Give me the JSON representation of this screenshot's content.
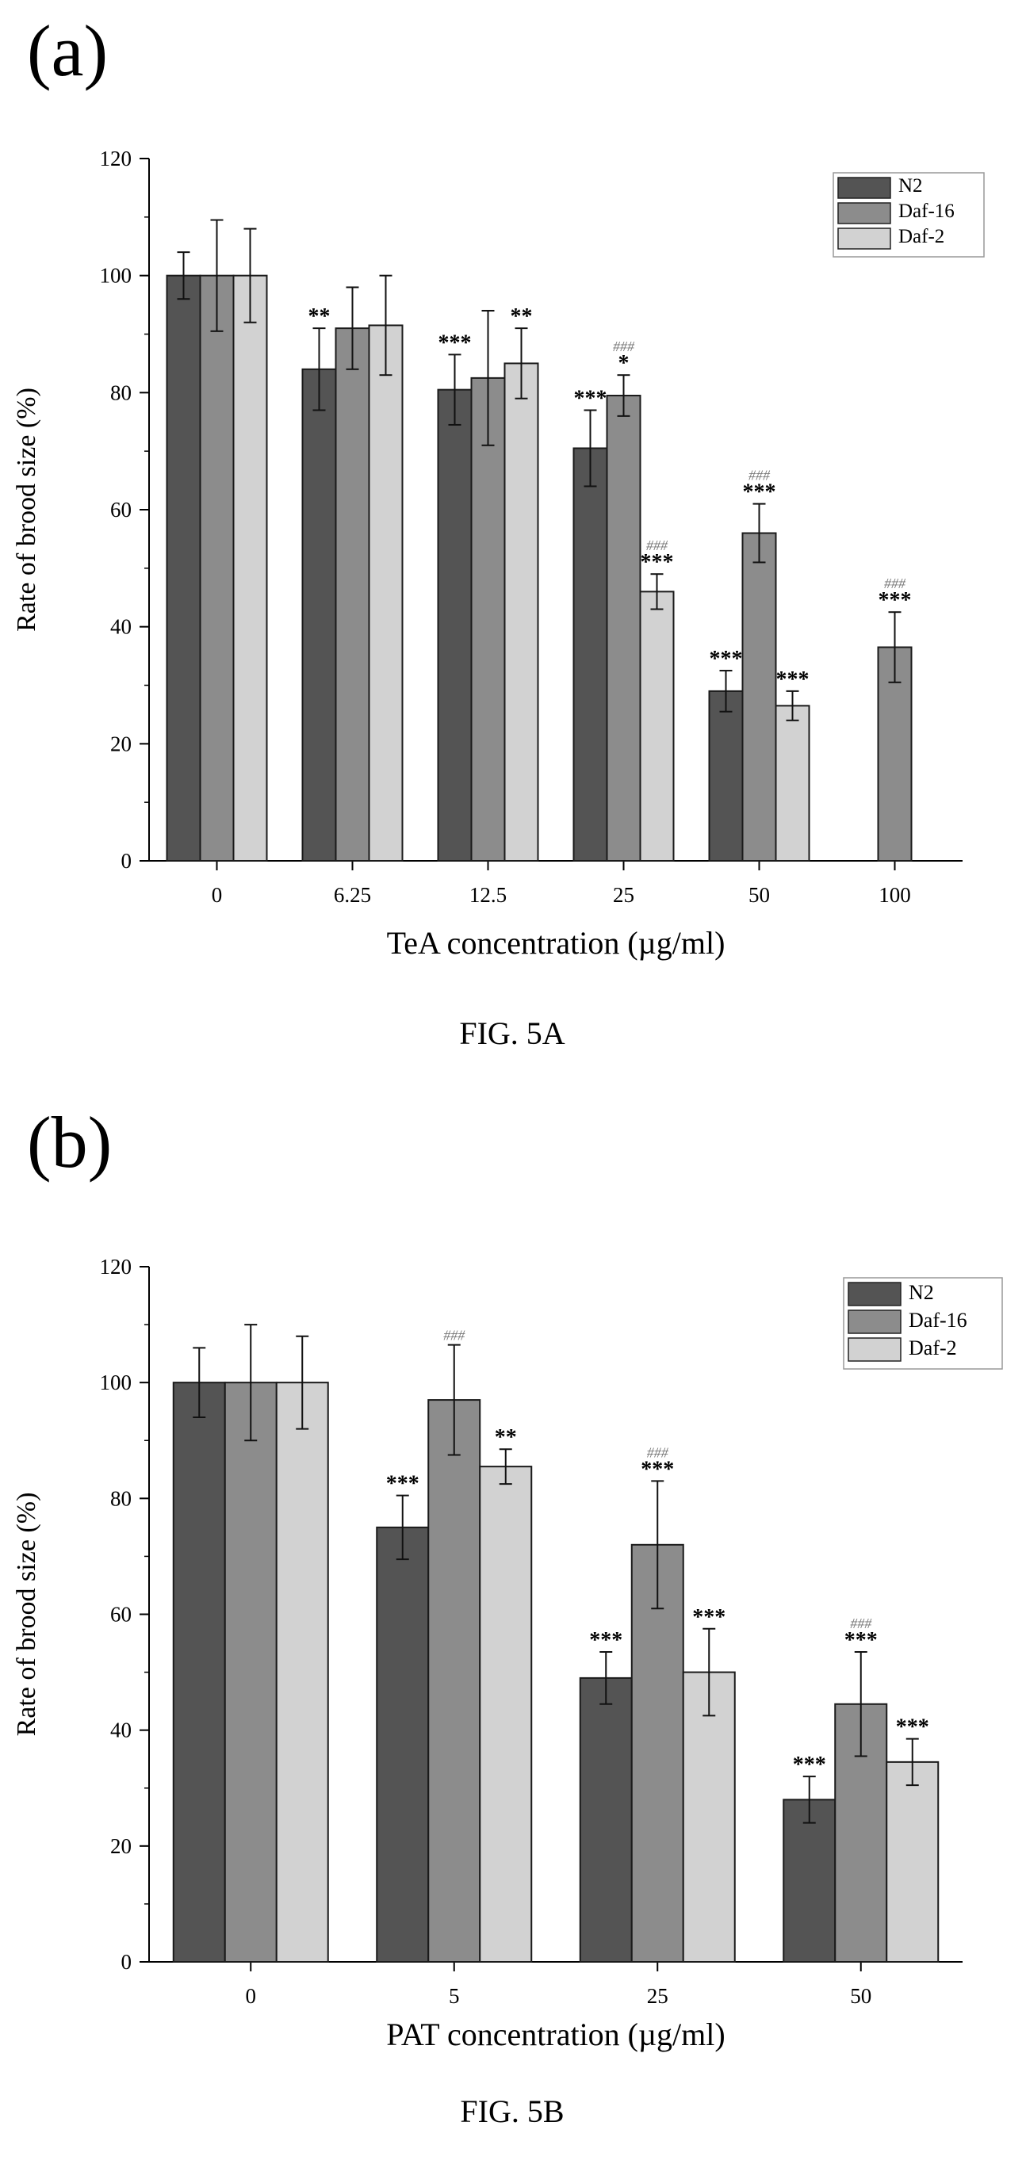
{
  "figure_a": {
    "panel_label": "(a)",
    "caption": "FIG. 5A",
    "legend": [
      "N2",
      "Daf-16",
      "Daf-2"
    ]
  },
  "figure_b": {
    "panel_label": "(b)",
    "caption": "FIG. 5B",
    "legend": [
      "N2",
      "Daf-16",
      "Daf-2"
    ]
  },
  "colors": {
    "N2": "#545454",
    "Daf-16": "#8c8c8c",
    "Daf-2": "#d2d2d2"
  },
  "chart_data": [
    {
      "type": "bar",
      "title": "",
      "xlabel": "TeA concentration (µg/ml)",
      "ylabel": "Rate of brood size (%)",
      "ylim": [
        0,
        120
      ],
      "yticks": [
        0,
        20,
        40,
        60,
        80,
        100,
        120
      ],
      "categories": [
        "0",
        "6.25",
        "12.5",
        "25",
        "50",
        "100"
      ],
      "legend_position": "top-right",
      "series": [
        {
          "name": "N2",
          "values": [
            100,
            84,
            80.5,
            70.5,
            29,
            null
          ],
          "errors": [
            4,
            7,
            6,
            6.5,
            3.5,
            null
          ],
          "annotations": [
            [
              "",
              ""
            ],
            [
              "",
              "**"
            ],
            [
              "",
              "***"
            ],
            [
              "",
              "***"
            ],
            [
              "",
              "***"
            ],
            [
              "",
              ""
            ]
          ]
        },
        {
          "name": "Daf-16",
          "values": [
            100,
            91,
            82.5,
            79.5,
            56,
            36.5
          ],
          "errors": [
            9.5,
            7,
            11.5,
            3.5,
            5,
            6
          ],
          "annotations": [
            [
              "",
              ""
            ],
            [
              "",
              ""
            ],
            [
              "",
              ""
            ],
            [
              "###",
              "*"
            ],
            [
              "###",
              "***"
            ],
            [
              "###",
              "***"
            ]
          ]
        },
        {
          "name": "Daf-2",
          "values": [
            100,
            91.5,
            85,
            46,
            26.5,
            null
          ],
          "errors": [
            8,
            8.5,
            6,
            3,
            2.5,
            null
          ],
          "annotations": [
            [
              "",
              ""
            ],
            [
              "",
              ""
            ],
            [
              "",
              "**"
            ],
            [
              "###",
              "***"
            ],
            [
              "",
              "***"
            ],
            [
              "",
              ""
            ]
          ]
        }
      ]
    },
    {
      "type": "bar",
      "title": "",
      "xlabel": "PAT concentration (µg/ml)",
      "ylabel": "Rate of brood size (%)",
      "ylim": [
        0,
        120
      ],
      "yticks": [
        0,
        20,
        40,
        60,
        80,
        100,
        120
      ],
      "categories": [
        "0",
        "5",
        "25",
        "50"
      ],
      "legend_position": "top-right",
      "series": [
        {
          "name": "N2",
          "values": [
            100,
            75,
            49,
            28
          ],
          "errors": [
            6,
            5.5,
            4.5,
            4
          ],
          "annotations": [
            [
              "",
              ""
            ],
            [
              "",
              "***"
            ],
            [
              "",
              "***"
            ],
            [
              "",
              "***"
            ]
          ]
        },
        {
          "name": "Daf-16",
          "values": [
            100,
            97,
            72,
            44.5
          ],
          "errors": [
            10,
            9.5,
            11,
            9
          ],
          "annotations": [
            [
              "",
              ""
            ],
            [
              "###",
              ""
            ],
            [
              "###",
              "***"
            ],
            [
              "###",
              "***"
            ]
          ]
        },
        {
          "name": "Daf-2",
          "values": [
            100,
            85.5,
            50,
            34.5
          ],
          "errors": [
            8,
            3,
            7.5,
            4
          ],
          "annotations": [
            [
              "",
              ""
            ],
            [
              "",
              "**"
            ],
            [
              "",
              "***"
            ],
            [
              "",
              "***"
            ]
          ]
        }
      ]
    }
  ]
}
